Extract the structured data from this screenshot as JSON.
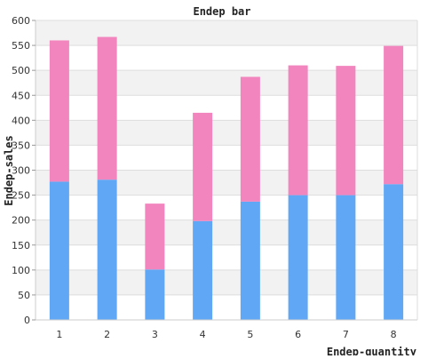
{
  "chart_data": {
    "type": "bar",
    "stacked": true,
    "title": "Endep bar",
    "xlabel": "Endep-quantity",
    "ylabel": "Endep-sales",
    "categories": [
      "1",
      "2",
      "3",
      "4",
      "5",
      "6",
      "7",
      "8"
    ],
    "series": [
      {
        "color": "#60a8f5",
        "values": [
          277,
          281,
          101,
          198,
          237,
          250,
          250,
          272
        ]
      },
      {
        "color": "#f285be",
        "values": [
          283,
          286,
          132,
          217,
          250,
          260,
          259,
          277
        ]
      }
    ],
    "ylim": [
      0,
      600
    ],
    "yticks": [
      0,
      50,
      100,
      150,
      200,
      250,
      300,
      350,
      400,
      450,
      500,
      550,
      600
    ],
    "grid": true,
    "legend": "none"
  }
}
